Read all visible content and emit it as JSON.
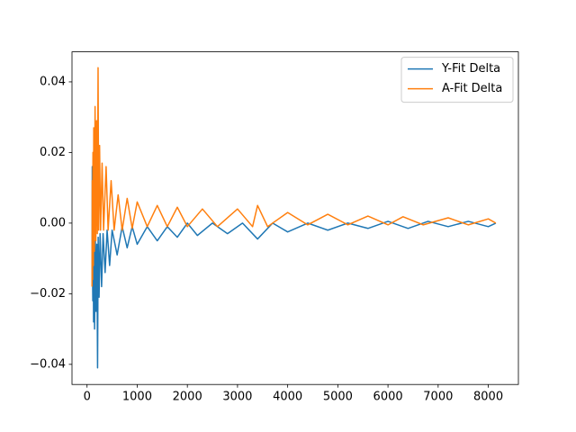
{
  "chart_data": {
    "type": "line",
    "xlim": [
      -300,
      8600
    ],
    "ylim": [
      -0.0457,
      0.0485
    ],
    "xticks": [
      0,
      1000,
      2000,
      3000,
      4000,
      5000,
      6000,
      7000,
      8000
    ],
    "yticks": [
      {
        "value": -0.04,
        "label": "−0.04"
      },
      {
        "value": -0.02,
        "label": "−0.02"
      },
      {
        "value": 0,
        "label": "0.00"
      },
      {
        "value": 0.02,
        "label": "0.02"
      },
      {
        "value": 0.04,
        "label": "0.04"
      }
    ],
    "legend": "upper right",
    "series": [
      {
        "name": "Y-Fit Delta",
        "color": "#1f77b4",
        "x": [
          100,
          104,
          108,
          115,
          122,
          130,
          140,
          150,
          165,
          180,
          195,
          210,
          222,
          240,
          260,
          290,
          320,
          360,
          400,
          450,
          500,
          600,
          700,
          800,
          900,
          1000,
          1200,
          1400,
          1600,
          1800,
          2000,
          2200,
          2500,
          2800,
          3100,
          3400,
          3700,
          4000,
          4400,
          4800,
          5200,
          5600,
          6000,
          6400,
          6800,
          7200,
          7600,
          8000,
          8150
        ],
        "values": [
          -0.018,
          0.016,
          -0.012,
          -0.022,
          0.001,
          -0.028,
          -0.008,
          -0.03,
          -0.005,
          -0.025,
          -0.006,
          -0.041,
          -0.004,
          -0.021,
          -0.003,
          -0.018,
          -0.003,
          -0.014,
          -0.002,
          -0.012,
          -0.002,
          -0.009,
          -0.001,
          -0.007,
          -0.001,
          -0.006,
          -0.001,
          -0.005,
          -0.001,
          -0.004,
          0,
          -0.0035,
          0,
          -0.003,
          0,
          -0.0045,
          0,
          -0.0025,
          0,
          -0.002,
          0,
          -0.0015,
          0.0005,
          -0.0015,
          0.0005,
          -0.001,
          0.0005,
          -0.001,
          0
        ]
      },
      {
        "name": "A-Fit Delta",
        "color": "#ff7f0e",
        "x": [
          100,
          104,
          110,
          118,
          126,
          134,
          145,
          160,
          175,
          190,
          205,
          220,
          232,
          250,
          270,
          300,
          330,
          380,
          420,
          480,
          540,
          620,
          700,
          800,
          900,
          1000,
          1200,
          1400,
          1600,
          1800,
          2000,
          2300,
          2600,
          3000,
          3300,
          3400,
          3600,
          4000,
          4400,
          4800,
          5200,
          5600,
          6000,
          6300,
          6700,
          7200,
          7600,
          8000,
          8150
        ],
        "values": [
          -0.018,
          0.012,
          -0.016,
          0.02,
          -0.012,
          0.027,
          -0.008,
          0.033,
          -0.005,
          0.029,
          -0.003,
          0.044,
          -0.002,
          0.022,
          -0.002,
          0.017,
          -0.002,
          0.016,
          -0.002,
          0.012,
          -0.002,
          0.008,
          -0.002,
          0.007,
          -0.0015,
          0.006,
          -0.001,
          0.005,
          -0.001,
          0.0045,
          -0.001,
          0.004,
          -0.001,
          0.004,
          -0.001,
          0.005,
          -0.001,
          0.003,
          -0.0005,
          0.0025,
          -0.0005,
          0.002,
          -0.0005,
          0.0018,
          -0.0005,
          0.0015,
          -0.0005,
          0.0012,
          0
        ]
      }
    ]
  }
}
